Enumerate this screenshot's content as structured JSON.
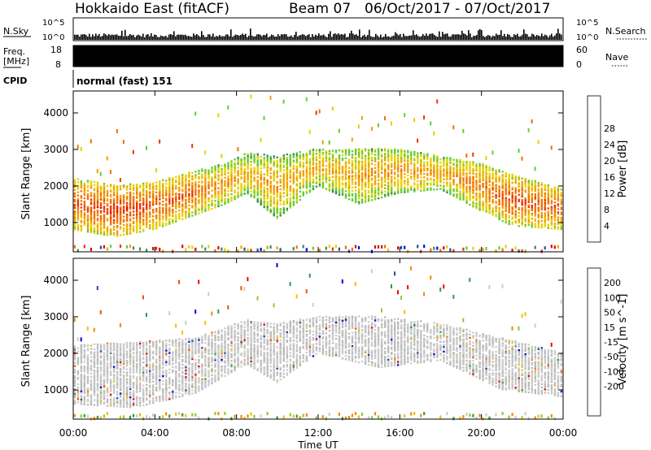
{
  "header": {
    "station": "Hokkaido East (fitACF)",
    "beam": "Beam 07",
    "date_range": "06/Oct/2017 - 07/Oct/2017"
  },
  "strips": {
    "nsky_label": "N.Sky",
    "nsky_ticks": [
      "10^5",
      "10^0"
    ],
    "nsearch_label": "N.Search",
    "nsearch_ticks": [
      "10^5",
      "10^0"
    ],
    "freq_label_line1": "Freq.",
    "freq_label_line2": "[MHz]",
    "freq_ticks": [
      "18",
      "8"
    ],
    "nave_label": "Nave",
    "nave_ticks": [
      "60",
      "0"
    ],
    "cpid_label": "CPID",
    "cpid_value": "normal (fast) 151"
  },
  "x_axis": {
    "label": "Time UT",
    "ticks": [
      "00:00",
      "04:00",
      "08:00",
      "12:00",
      "16:00",
      "20:00",
      "00:00"
    ]
  },
  "colors": {
    "power_scale": [
      "#0000ff",
      "#2a4fa0",
      "#3a8a5a",
      "#66cc33",
      "#e8d000",
      "#f0a000",
      "#f07000",
      "#ee3300",
      "#dd0000"
    ],
    "velocity_scale": [
      "#ee0000",
      "#f05000",
      "#f08a00",
      "#f0c000",
      "#cccccc",
      "#cccccc",
      "#88cc33",
      "#339944",
      "#2244aa",
      "#0000dd"
    ],
    "ground_scatter": "#999999"
  },
  "chart_data": [
    {
      "type": "heatmap",
      "title": "Power",
      "ylabel": "Slant Range [km]",
      "y_ticks": [
        "1000",
        "2000",
        "3000",
        "4000"
      ],
      "ylim": [
        200,
        4600
      ],
      "xlim_hours": [
        0,
        24
      ],
      "colorbar": {
        "label": "Power [dB]",
        "ticks": [
          "4",
          "8",
          "12",
          "16",
          "20",
          "24",
          "28"
        ],
        "range": [
          0,
          32
        ]
      },
      "echo_bands": [
        {
          "t": 0,
          "lo": 800,
          "hi": 2200,
          "level": 26
        },
        {
          "t": 2,
          "lo": 600,
          "hi": 2000,
          "level": 29
        },
        {
          "t": 4,
          "lo": 800,
          "hi": 2100,
          "level": 27
        },
        {
          "t": 6,
          "lo": 1200,
          "hi": 2400,
          "level": 25
        },
        {
          "t": 7.5,
          "lo": 1500,
          "hi": 2600,
          "level": 22
        },
        {
          "t": 8.5,
          "lo": 1800,
          "hi": 2900,
          "level": 20
        },
        {
          "t": 10,
          "lo": 1100,
          "hi": 2800,
          "level": 21
        },
        {
          "t": 12,
          "lo": 2000,
          "hi": 3000,
          "level": 20
        },
        {
          "t": 14,
          "lo": 1500,
          "hi": 3000,
          "level": 21
        },
        {
          "t": 16,
          "lo": 1800,
          "hi": 3000,
          "level": 22
        },
        {
          "t": 18,
          "lo": 1900,
          "hi": 2800,
          "level": 21
        },
        {
          "t": 20,
          "lo": 1300,
          "hi": 2600,
          "level": 24
        },
        {
          "t": 21.5,
          "lo": 900,
          "hi": 2300,
          "level": 27
        },
        {
          "t": 24,
          "lo": 800,
          "hi": 1900,
          "level": 26
        }
      ]
    },
    {
      "type": "heatmap",
      "title": "Velocity",
      "ylabel": "Slant Range [km]",
      "y_ticks": [
        "1000",
        "2000",
        "3000",
        "4000"
      ],
      "ylim": [
        200,
        4600
      ],
      "xlim_hours": [
        0,
        24
      ],
      "colorbar": {
        "label": "Velocity [m s^-1]",
        "ticks": [
          "200",
          "100",
          "50",
          "15",
          "-15",
          "-50",
          "-100",
          "-200"
        ],
        "range": [
          -250,
          250
        ]
      },
      "echo_bands": [
        {
          "t": 0,
          "lo": 600,
          "hi": 2200,
          "velocity": 0
        },
        {
          "t": 3,
          "lo": 500,
          "hi": 2300,
          "velocity": 0
        },
        {
          "t": 6,
          "lo": 900,
          "hi": 2400,
          "velocity": 0
        },
        {
          "t": 8.5,
          "lo": 1700,
          "hi": 2900,
          "velocity": 0
        },
        {
          "t": 10,
          "lo": 1200,
          "hi": 2800,
          "velocity": 0
        },
        {
          "t": 12,
          "lo": 2000,
          "hi": 3000,
          "velocity": 0
        },
        {
          "t": 15,
          "lo": 1600,
          "hi": 3000,
          "velocity": 0
        },
        {
          "t": 18,
          "lo": 1800,
          "hi": 2800,
          "velocity": 0
        },
        {
          "t": 21,
          "lo": 1000,
          "hi": 2400,
          "velocity": -20
        },
        {
          "t": 24,
          "lo": 800,
          "hi": 2000,
          "velocity": 0
        }
      ]
    }
  ]
}
